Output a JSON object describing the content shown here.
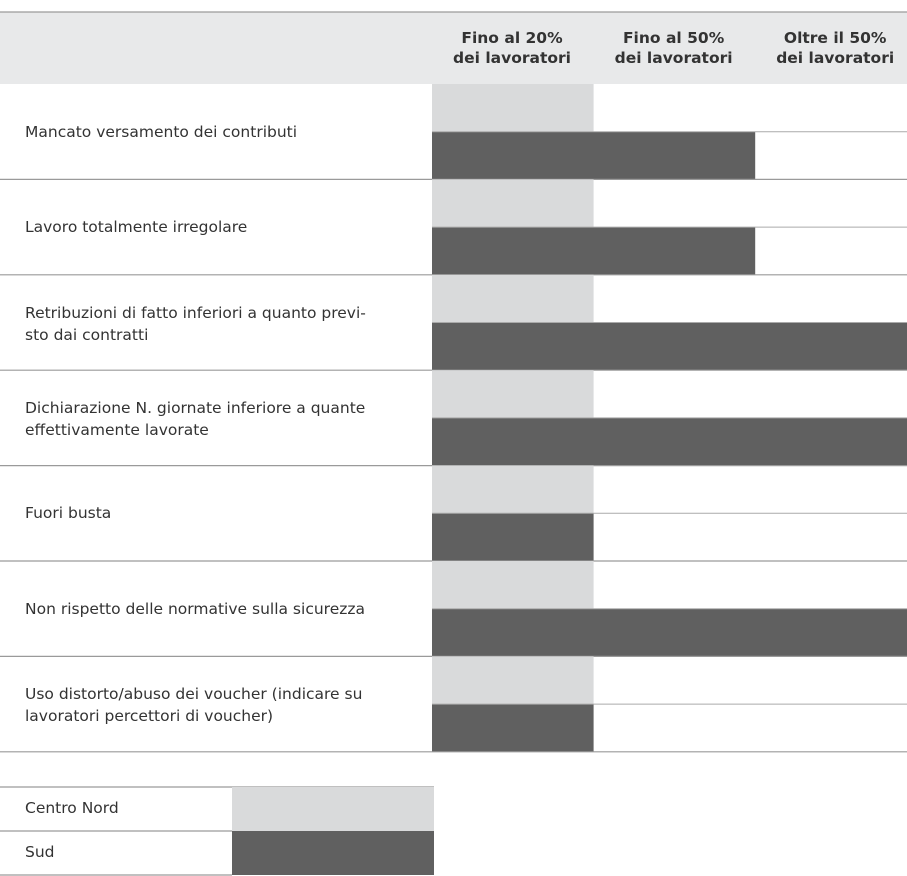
{
  "chart_data": {
    "type": "bar",
    "columns": [
      "Fino al 20%\ndei lavoratori",
      "Fino al 50%\ndei lavoratori",
      "Oltre il 50%\ndei lavoratori"
    ],
    "categories": [
      "Mancato versamento dei contributi",
      "Lavoro totalmente irregolare",
      "Retribuzioni di fatto inferiori a quanto previ-\nsto dai contratti",
      "Dichiarazione N. giornate inferiore a quante\neffettivamente lavorate",
      "Fuori busta",
      "Non rispetto delle normative sulla sicurezza",
      "Uso distorto/abuso dei voucher (indicare su\nlavoratori percettori di voucher)"
    ],
    "series": [
      {
        "name": "Centro Nord",
        "color": "#d9dadb",
        "values": [
          1,
          1,
          1,
          1,
          1,
          1,
          1
        ]
      },
      {
        "name": "Sud",
        "color": "#606060",
        "values": [
          2,
          2,
          3,
          3,
          1,
          3,
          1
        ]
      }
    ],
    "scale_max": 3
  }
}
